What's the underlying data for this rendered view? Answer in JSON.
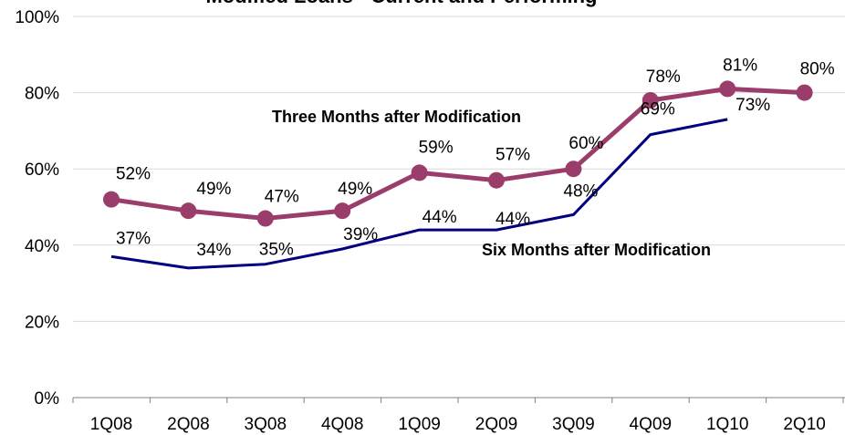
{
  "chart_data": {
    "type": "line",
    "title": "Modified Loans - Current and Performing",
    "categories": [
      "1Q08",
      "2Q08",
      "3Q08",
      "4Q08",
      "1Q09",
      "2Q09",
      "3Q09",
      "4Q09",
      "1Q10",
      "2Q10"
    ],
    "ylim": [
      0,
      100
    ],
    "yticks": [
      "0%",
      "20%",
      "40%",
      "60%",
      "80%",
      "100%"
    ],
    "grid": true,
    "series": [
      {
        "name": "Three Months after Modification",
        "values": [
          52,
          49,
          47,
          49,
          59,
          57,
          60,
          78,
          81,
          80
        ],
        "labels": [
          "52%",
          "49%",
          "47%",
          "49%",
          "59%",
          "57%",
          "60%",
          "78%",
          "81%",
          "80%"
        ],
        "color": "#9B3D6B",
        "markers": true
      },
      {
        "name": "Six Months after Modification",
        "values": [
          37,
          34,
          35,
          39,
          44,
          44,
          48,
          69,
          73,
          null
        ],
        "labels": [
          "37%",
          "34%",
          "35%",
          "39%",
          "44%",
          "44%",
          "48%",
          "69%",
          "73%",
          null
        ],
        "color": "#000080",
        "markers": false
      }
    ]
  }
}
